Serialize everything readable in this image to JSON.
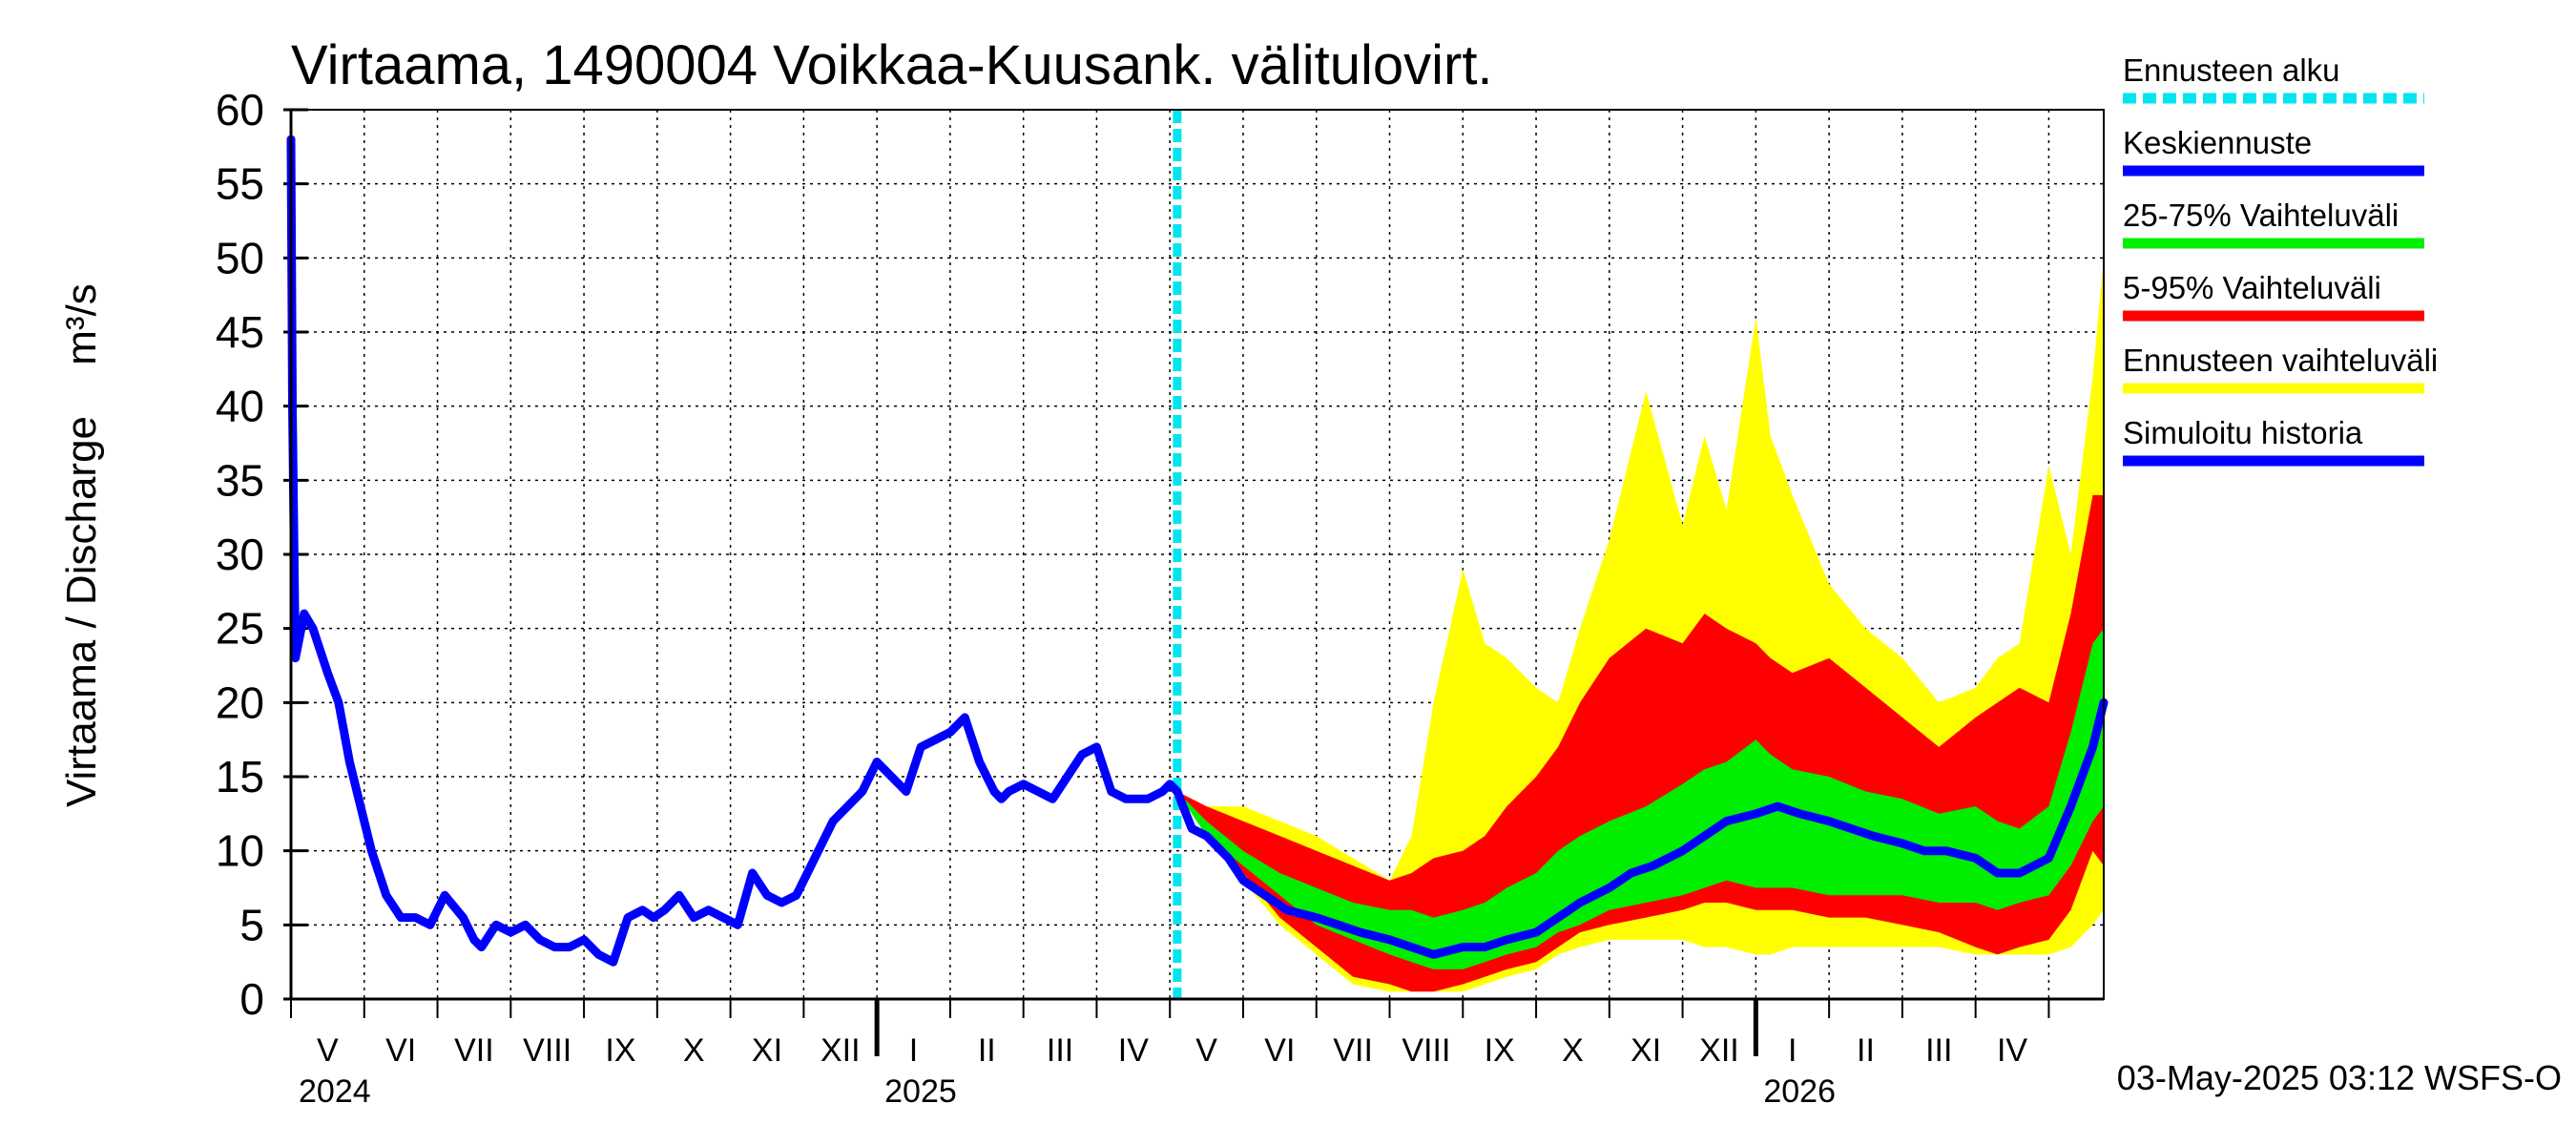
{
  "chart_data": {
    "type": "line",
    "title": "Virtaama, 1490004 Voikkaa-Kuusank. välitulovirt.",
    "ylabel_left": "Virtaama / Discharge",
    "ylabel_unit": "m³/s",
    "ylim": [
      0,
      60
    ],
    "yticks": [
      0,
      5,
      10,
      15,
      20,
      25,
      30,
      35,
      40,
      45,
      50,
      55,
      60
    ],
    "x_start_month": 4,
    "x_months_total": 24.75,
    "month_labels": [
      "V",
      "VI",
      "VII",
      "VIII",
      "IX",
      "X",
      "XI",
      "XII",
      "I",
      "II",
      "III",
      "IV",
      "V",
      "VI",
      "VII",
      "VIII",
      "IX",
      "X",
      "XI",
      "XII",
      "I",
      "II",
      "III",
      "IV"
    ],
    "year_labels": [
      {
        "label": "2024",
        "month_index": 0
      },
      {
        "label": "2025",
        "month_index": 8
      },
      {
        "label": "2026",
        "month_index": 20
      }
    ],
    "year_boundaries": [
      8,
      20
    ],
    "forecast_start_month": 12.1,
    "footer": "03-May-2025 03:12 WSFS-O",
    "legend": [
      {
        "label": "Ennusteen alku",
        "color": "#00e5ee",
        "style": "dashed"
      },
      {
        "label": "Keskiennuste",
        "color": "#0000ff",
        "style": "solid"
      },
      {
        "label": "25-75% Vaihteluväli",
        "color": "#00ee00",
        "style": "solid"
      },
      {
        "label": "5-95% Vaihteluväli",
        "color": "#ff0000",
        "style": "solid"
      },
      {
        "label": "Ennusteen vaihteluväli",
        "color": "#ffff00",
        "style": "solid"
      },
      {
        "label": "Simuloitu historia",
        "color": "#0000ff",
        "style": "solid"
      }
    ],
    "series": [
      {
        "name": "Simuloitu historia",
        "color": "#0000ff",
        "x": [
          0.0,
          0.02,
          0.06,
          0.1,
          0.18,
          0.3,
          0.5,
          0.65,
          0.8,
          0.95,
          1.1,
          1.3,
          1.5,
          1.7,
          1.9,
          2.1,
          2.35,
          2.5,
          2.6,
          2.8,
          3.0,
          3.2,
          3.4,
          3.6,
          3.8,
          4.0,
          4.2,
          4.4,
          4.6,
          4.8,
          4.95,
          5.1,
          5.3,
          5.5,
          5.7,
          5.9,
          6.1,
          6.3,
          6.5,
          6.7,
          6.9,
          7.0,
          7.2,
          7.4,
          7.6,
          7.8,
          8.0,
          8.2,
          8.4,
          8.6,
          8.8,
          9.0,
          9.2,
          9.4,
          9.6,
          9.7,
          9.8,
          10.0,
          10.2,
          10.4,
          10.6,
          10.8,
          11.0,
          11.2,
          11.4,
          11.5,
          11.7,
          11.9,
          12.0,
          12.1
        ],
        "values": [
          58,
          40,
          23,
          24,
          26,
          25,
          22,
          20,
          16,
          13,
          10,
          7,
          5.5,
          5.5,
          5,
          7,
          5.5,
          4,
          3.5,
          5,
          4.5,
          5,
          4,
          3.5,
          3.5,
          4,
          3,
          2.5,
          5.5,
          6,
          5.5,
          6,
          7,
          5.5,
          6,
          5.5,
          5,
          8.5,
          7,
          6.5,
          7,
          8,
          10,
          12,
          13,
          14,
          16,
          15,
          14,
          17,
          17.5,
          18,
          19,
          16,
          14,
          13.5,
          14,
          14.5,
          14,
          13.5,
          15,
          16.5,
          17,
          14,
          13.5,
          13.5,
          13.5,
          14,
          14.5,
          14
        ]
      },
      {
        "name": "Keskiennuste",
        "color": "#0000ff",
        "x": [
          12.1,
          12.3,
          12.5,
          12.8,
          13.0,
          13.3,
          13.6,
          14.0,
          14.3,
          14.6,
          15.0,
          15.3,
          15.6,
          16.0,
          16.3,
          16.6,
          17.0,
          17.3,
          17.6,
          18.0,
          18.3,
          18.6,
          19.0,
          19.3,
          19.6,
          20.0,
          20.3,
          20.6,
          21.0,
          21.3,
          21.6,
          22.0,
          22.3,
          22.6,
          23.0,
          23.3,
          23.6,
          24.0,
          24.3,
          24.6,
          24.75
        ],
        "values": [
          14,
          11.5,
          11,
          9.5,
          8,
          7,
          6,
          5.5,
          5,
          4.5,
          4,
          3.5,
          3,
          3.5,
          3.5,
          4,
          4.5,
          5.5,
          6.5,
          7.5,
          8.5,
          9,
          10,
          11,
          12,
          12.5,
          13,
          12.5,
          12,
          11.5,
          11,
          10.5,
          10,
          10,
          9.5,
          8.5,
          8.5,
          9.5,
          13,
          17,
          20
        ]
      }
    ],
    "bands": [
      {
        "name": "Ennusteen vaihteluväli",
        "color": "#ffff00",
        "x": [
          12.1,
          12.5,
          13.0,
          13.5,
          14.0,
          14.5,
          15.0,
          15.3,
          15.6,
          16.0,
          16.3,
          16.6,
          17.0,
          17.3,
          17.6,
          18.0,
          18.5,
          19.0,
          19.3,
          19.6,
          20.0,
          20.2,
          20.5,
          21.0,
          21.5,
          22.0,
          22.5,
          23.0,
          23.3,
          23.6,
          24.0,
          24.3,
          24.6,
          24.75
        ],
        "upper": [
          14,
          13,
          13,
          12,
          11,
          9.5,
          8,
          11,
          20,
          29,
          24,
          23,
          21,
          20,
          25,
          31,
          41,
          32,
          38,
          33,
          46,
          38,
          34,
          28,
          25,
          23,
          20,
          21,
          23,
          24,
          36,
          30,
          42,
          50
        ],
        "lower": [
          14,
          11,
          8,
          5,
          3,
          1,
          0.5,
          0.5,
          0.5,
          0.5,
          1,
          1.5,
          2,
          3,
          3.5,
          4,
          4,
          4,
          3.5,
          3.5,
          3,
          3,
          3.5,
          3.5,
          3.5,
          3.5,
          3.5,
          3,
          3,
          3,
          3,
          3.5,
          5,
          6
        ]
      },
      {
        "name": "5-95% Vaihteluväli",
        "color": "#ff0000",
        "x": [
          12.1,
          12.5,
          13.0,
          13.5,
          14.0,
          14.5,
          15.0,
          15.3,
          15.6,
          16.0,
          16.3,
          16.6,
          17.0,
          17.3,
          17.6,
          18.0,
          18.5,
          19.0,
          19.3,
          19.6,
          20.0,
          20.2,
          20.5,
          21.0,
          21.5,
          22.0,
          22.5,
          23.0,
          23.3,
          23.6,
          24.0,
          24.3,
          24.6,
          24.75
        ],
        "upper": [
          14,
          13,
          12,
          11,
          10,
          9,
          8,
          8.5,
          9.5,
          10,
          11,
          13,
          15,
          17,
          20,
          23,
          25,
          24,
          26,
          25,
          24,
          23,
          22,
          23,
          21,
          19,
          17,
          19,
          20,
          21,
          20,
          26,
          34,
          34
        ],
        "lower": [
          14,
          11.5,
          8.5,
          5.5,
          3.5,
          1.5,
          1,
          0.5,
          0.5,
          1,
          1.5,
          2,
          2.5,
          3.5,
          4.5,
          5,
          5.5,
          6,
          6.5,
          6.5,
          6,
          6,
          6,
          5.5,
          5.5,
          5,
          4.5,
          3.5,
          3,
          3.5,
          4,
          6,
          10,
          9
        ]
      },
      {
        "name": "25-75% Vaihteluväli",
        "color": "#00ee00",
        "x": [
          12.1,
          12.5,
          13.0,
          13.5,
          14.0,
          14.5,
          15.0,
          15.3,
          15.6,
          16.0,
          16.3,
          16.6,
          17.0,
          17.3,
          17.6,
          18.0,
          18.5,
          19.0,
          19.3,
          19.6,
          20.0,
          20.2,
          20.5,
          21.0,
          21.5,
          22.0,
          22.5,
          23.0,
          23.3,
          23.6,
          24.0,
          24.3,
          24.6,
          24.75
        ],
        "upper": [
          14,
          12,
          10,
          8.5,
          7.5,
          6.5,
          6,
          6,
          5.5,
          6,
          6.5,
          7.5,
          8.5,
          10,
          11,
          12,
          13,
          14.5,
          15.5,
          16,
          17.5,
          16.5,
          15.5,
          15,
          14,
          13.5,
          12.5,
          13,
          12,
          11.5,
          13,
          18,
          24,
          25
        ],
        "lower": [
          14,
          11,
          9,
          7,
          5,
          4,
          3,
          2.5,
          2,
          2,
          2.5,
          3,
          3.5,
          4.5,
          5,
          6,
          6.5,
          7,
          7.5,
          8,
          7.5,
          7.5,
          7.5,
          7,
          7,
          7,
          6.5,
          6.5,
          6,
          6.5,
          7,
          9,
          12,
          13
        ]
      }
    ]
  }
}
